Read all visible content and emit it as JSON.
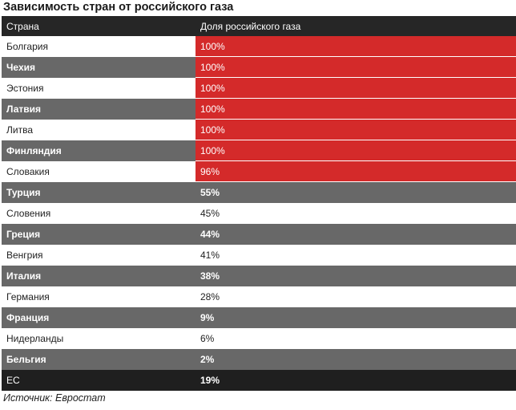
{
  "chart_data": {
    "type": "table",
    "title": "Зависимость стран от российского газа",
    "columns": [
      "Страна",
      "Доля российского газа"
    ],
    "rows": [
      {
        "country": "Болгария",
        "share_label": "100%",
        "share": 100,
        "highlight": true
      },
      {
        "country": "Чехия",
        "share_label": "100%",
        "share": 100,
        "highlight": true
      },
      {
        "country": "Эстония",
        "share_label": "100%",
        "share": 100,
        "highlight": true
      },
      {
        "country": "Латвия",
        "share_label": "100%",
        "share": 100,
        "highlight": true
      },
      {
        "country": "Литва",
        "share_label": "100%",
        "share": 100,
        "highlight": true
      },
      {
        "country": "Финляндия",
        "share_label": "100%",
        "share": 100,
        "highlight": true
      },
      {
        "country": "Словакия",
        "share_label": "96%",
        "share": 96,
        "highlight": true
      },
      {
        "country": "Турция",
        "share_label": "55%",
        "share": 55,
        "highlight": false
      },
      {
        "country": "Словения",
        "share_label": "45%",
        "share": 45,
        "highlight": false
      },
      {
        "country": "Греция",
        "share_label": "44%",
        "share": 44,
        "highlight": false
      },
      {
        "country": "Венгрия",
        "share_label": "41%",
        "share": 41,
        "highlight": false
      },
      {
        "country": "Италия",
        "share_label": "38%",
        "share": 38,
        "highlight": false
      },
      {
        "country": "Германия",
        "share_label": "28%",
        "share": 28,
        "highlight": false
      },
      {
        "country": "Франция",
        "share_label": "9%",
        "share": 9,
        "highlight": false
      },
      {
        "country": "Нидерланды",
        "share_label": "6%",
        "share": 6,
        "highlight": false
      },
      {
        "country": "Бельгия",
        "share_label": "2%",
        "share": 2,
        "highlight": false
      }
    ],
    "total": {
      "country": "ЕС",
      "share_label": "19%",
      "share": 19
    },
    "source": "Источник: Евростат"
  },
  "colors": {
    "highlight": "#d42a2a",
    "header": "#262626",
    "stripe": "#686868",
    "total": "#1f1f1f"
  }
}
